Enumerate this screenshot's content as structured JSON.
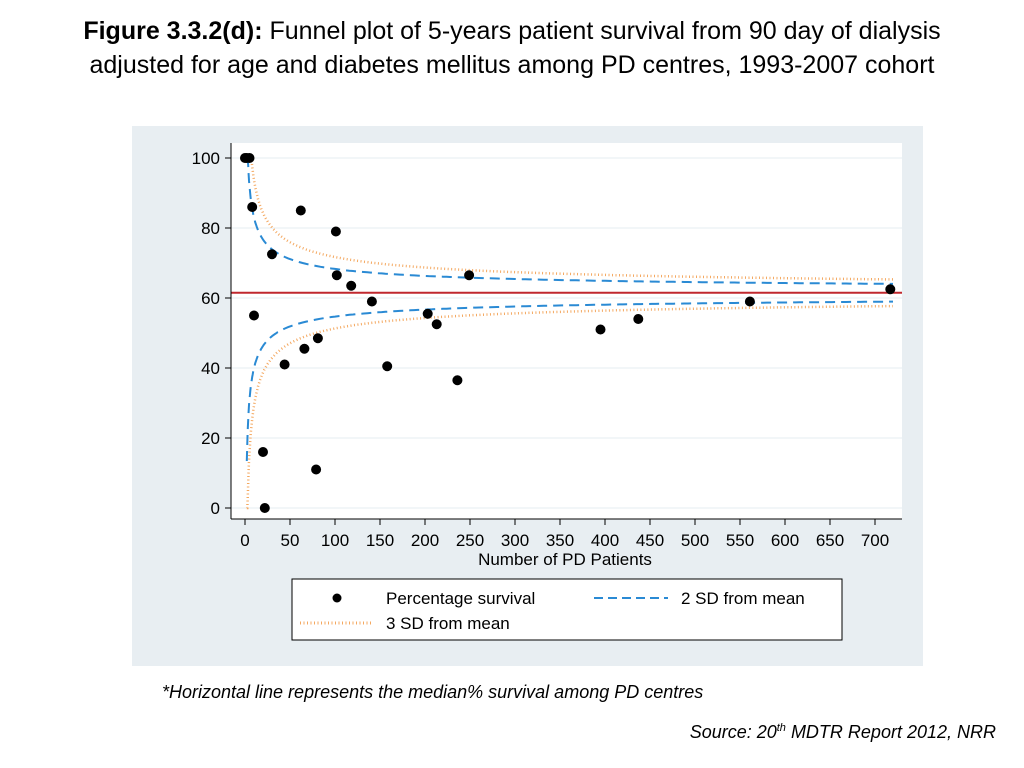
{
  "title": {
    "bold": "Figure 3.3.2(d):",
    "text": " Funnel plot of 5-years patient survival from 90 day of dialysis adjusted for age and diabetes mellitus among PD centres, 1993-2007 cohort"
  },
  "footnote": "*Horizontal line represents the median% survival among PD centres",
  "source": {
    "prefix": "Source: 20",
    "sup": "th",
    "suffix": " MDTR Report 2012, NRR"
  },
  "chart_data": {
    "type": "scatter",
    "xlabel": "Number of PD Patients",
    "ylabel": "",
    "xlim": [
      0,
      720
    ],
    "ylim": [
      0,
      100
    ],
    "xticks": [
      0,
      50,
      100,
      150,
      200,
      250,
      300,
      350,
      400,
      450,
      500,
      550,
      600,
      650,
      700
    ],
    "yticks": [
      0,
      20,
      40,
      60,
      80,
      100
    ],
    "grid": true,
    "median": 61.5,
    "points": [
      {
        "x": 0,
        "y": 100
      },
      {
        "x": 2,
        "y": 100
      },
      {
        "x": 5,
        "y": 100
      },
      {
        "x": 8,
        "y": 86
      },
      {
        "x": 10,
        "y": 55
      },
      {
        "x": 20,
        "y": 16
      },
      {
        "x": 22,
        "y": 0
      },
      {
        "x": 30,
        "y": 72.5
      },
      {
        "x": 44,
        "y": 41
      },
      {
        "x": 62,
        "y": 85
      },
      {
        "x": 66,
        "y": 45.5
      },
      {
        "x": 79,
        "y": 11
      },
      {
        "x": 81,
        "y": 48.5
      },
      {
        "x": 101,
        "y": 79
      },
      {
        "x": 102,
        "y": 66.5
      },
      {
        "x": 118,
        "y": 63.5
      },
      {
        "x": 141,
        "y": 59
      },
      {
        "x": 158,
        "y": 40.5
      },
      {
        "x": 203,
        "y": 55.5
      },
      {
        "x": 213,
        "y": 52.5
      },
      {
        "x": 236,
        "y": 36.5
      },
      {
        "x": 249,
        "y": 66.5
      },
      {
        "x": 395,
        "y": 51
      },
      {
        "x": 437,
        "y": 54
      },
      {
        "x": 561,
        "y": 59
      },
      {
        "x": 717,
        "y": 62.5
      }
    ],
    "sd2_sigma_k": 68,
    "sd3_sigma_k": 102,
    "funnel_n_min": 2,
    "legend": {
      "placement": "bottom",
      "entries": [
        {
          "label": "Percentage survival",
          "style": "dot"
        },
        {
          "label": "2 SD from mean",
          "style": "dash"
        },
        {
          "label": "3 SD from mean",
          "style": "dot-line"
        }
      ]
    },
    "colors": {
      "panel": "#e8eef2",
      "plot": "#ffffff",
      "grid": "#e6ecf0",
      "median": "#c0282e",
      "sd2": "#2a8ad4",
      "sd3": "#f4a860",
      "points": "#000000"
    }
  }
}
